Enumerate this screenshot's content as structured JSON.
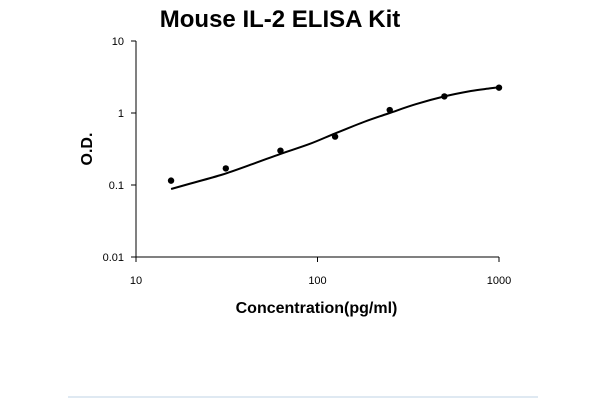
{
  "chart_data": {
    "type": "scatter",
    "title": "Mouse IL-2 ELISA Kit",
    "xlabel": "Concentration(pg/ml)",
    "ylabel": "O.D.",
    "x_scale": "log",
    "y_scale": "log",
    "xlim": [
      10,
      1000
    ],
    "ylim": [
      0.01,
      10
    ],
    "x_ticks": [
      {
        "value": 10,
        "label": "10"
      },
      {
        "value": 100,
        "label": "100"
      },
      {
        "value": 1000,
        "label": "1000"
      }
    ],
    "y_ticks": [
      {
        "value": 0.01,
        "label": "0.01"
      },
      {
        "value": 0.1,
        "label": "0.1"
      },
      {
        "value": 1,
        "label": "1"
      },
      {
        "value": 10,
        "label": "10"
      }
    ],
    "grid": false,
    "points": [
      {
        "x": 15.6,
        "y": 0.115
      },
      {
        "x": 31.25,
        "y": 0.17
      },
      {
        "x": 62.5,
        "y": 0.3
      },
      {
        "x": 125,
        "y": 0.47
      },
      {
        "x": 250,
        "y": 1.1
      },
      {
        "x": 500,
        "y": 1.7
      },
      {
        "x": 1000,
        "y": 2.25
      }
    ],
    "fit_curve": [
      {
        "x": 15.6,
        "y": 0.088
      },
      {
        "x": 20,
        "y": 0.105
      },
      {
        "x": 30,
        "y": 0.14
      },
      {
        "x": 45,
        "y": 0.2
      },
      {
        "x": 62.5,
        "y": 0.27
      },
      {
        "x": 90,
        "y": 0.37
      },
      {
        "x": 125,
        "y": 0.52
      },
      {
        "x": 180,
        "y": 0.75
      },
      {
        "x": 250,
        "y": 1.0
      },
      {
        "x": 350,
        "y": 1.33
      },
      {
        "x": 500,
        "y": 1.7
      },
      {
        "x": 700,
        "y": 2.02
      },
      {
        "x": 900,
        "y": 2.2
      },
      {
        "x": 1000,
        "y": 2.28
      }
    ]
  }
}
